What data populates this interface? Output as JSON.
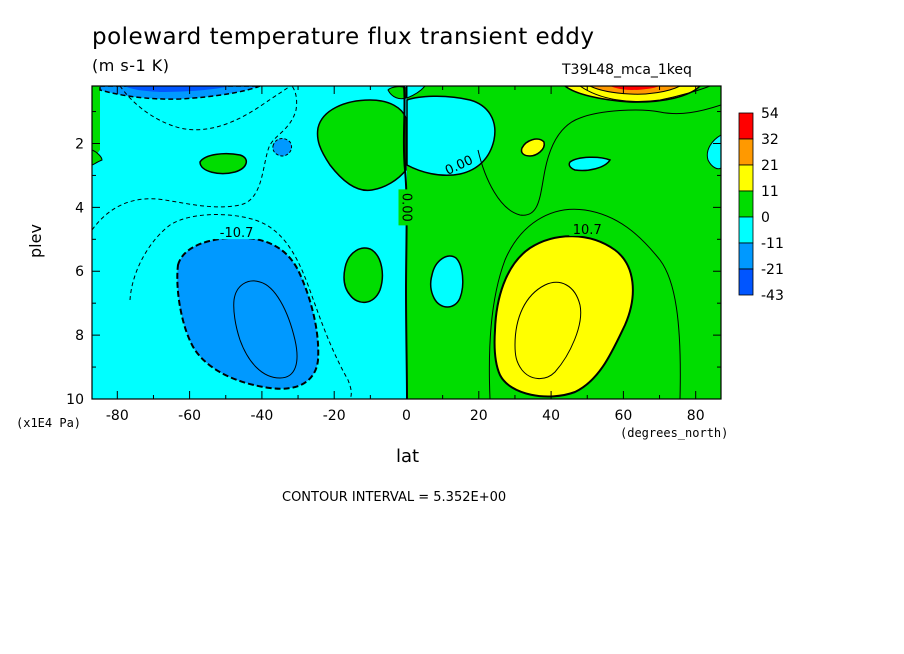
{
  "chart_data": {
    "type": "heatmap",
    "title": "poleward temperature flux transient eddy",
    "units": "(m s-1 K)",
    "run_label": "T39L48_mca_1keq",
    "xlabel": "lat",
    "ylabel": "plev",
    "x_unit": "(degrees_north)",
    "y_unit": "(x1E4 Pa)",
    "xlim": [
      -87,
      87
    ],
    "ylim": [
      10,
      0.2
    ],
    "x_ticks": [
      -80,
      -60,
      -40,
      -20,
      0,
      20,
      40,
      60,
      80
    ],
    "y_ticks": [
      2,
      4,
      6,
      8,
      10
    ],
    "contour_interval_text": "CONTOUR INTERVAL = 5.352E+00",
    "contour_labels": [
      {
        "text": "-10.7",
        "lat": -47,
        "plev": 4.9
      },
      {
        "text": "0.00",
        "lat": 0,
        "plev": 4.0
      },
      {
        "text": "0.00",
        "lat": 15,
        "plev": 2.8
      },
      {
        "text": "10.7",
        "lat": 50,
        "plev": 4.8
      }
    ],
    "legend": {
      "levels": [
        "54",
        "32",
        "21",
        "11",
        "0",
        "-11",
        "-21",
        "-43"
      ],
      "colors": [
        "#ff0000",
        "#ff9900",
        "#ffff00",
        "#00dd00",
        "#00ffff",
        "#0099ff",
        "#0055ff"
      ]
    },
    "colors": {
      "neg1": "#00ffff",
      "neg2": "#0099ff",
      "neg3": "#0055ff",
      "pos1": "#00dd00",
      "pos2": "#ffff00",
      "pos3": "#ff9900",
      "pos4": "#ff0000"
    }
  }
}
